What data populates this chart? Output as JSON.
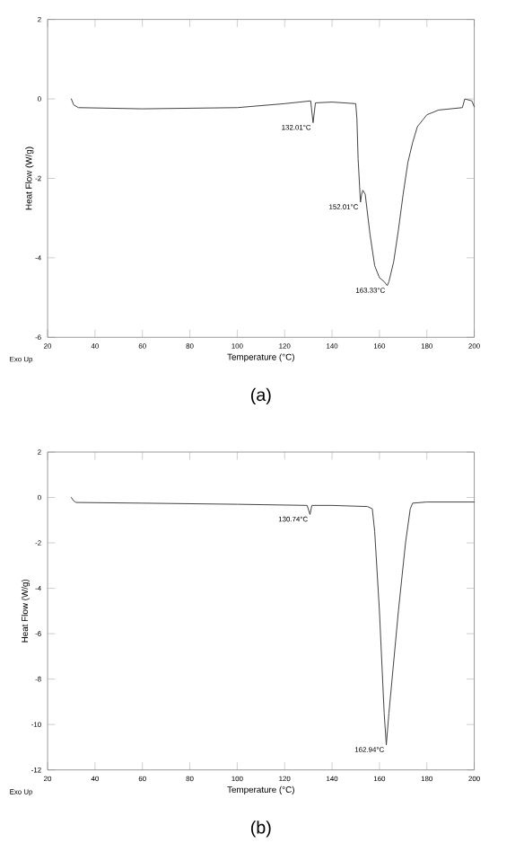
{
  "chart_data": [
    {
      "type": "line",
      "title": "(a)",
      "xlabel": "Temperature (°C)",
      "ylabel": "Heat Flow (W/g)",
      "xlim": [
        20,
        200
      ],
      "ylim": [
        -6,
        2
      ],
      "xticks": [
        20,
        40,
        60,
        80,
        100,
        120,
        140,
        160,
        180,
        200
      ],
      "yticks": [
        -6,
        -4,
        -2,
        0,
        2
      ],
      "series": [
        {
          "color": "#404040",
          "x": [
            30,
            31,
            33,
            60,
            100,
            120,
            131,
            132,
            133,
            140,
            150,
            150.5,
            151,
            152,
            152.5,
            153,
            154,
            156,
            158,
            160,
            162,
            163.3,
            164,
            166,
            168,
            170,
            172,
            174,
            176,
            180,
            185,
            190,
            195,
            196,
            199,
            200
          ],
          "values": [
            0,
            -0.15,
            -0.22,
            -0.25,
            -0.22,
            -0.12,
            -0.05,
            -0.6,
            -0.1,
            -0.08,
            -0.12,
            -0.5,
            -1.5,
            -2.6,
            -2.4,
            -2.3,
            -2.4,
            -3.4,
            -4.2,
            -4.5,
            -4.6,
            -4.7,
            -4.6,
            -4.1,
            -3.3,
            -2.4,
            -1.6,
            -1.1,
            -0.7,
            -0.4,
            -0.28,
            -0.25,
            -0.22,
            0,
            -0.05,
            -0.2
          ]
        }
      ],
      "annotations": [
        "Exo Up",
        {
          "text": "132.01°C",
          "x": 132,
          "y": -0.6
        },
        {
          "text": "152.01°C",
          "x": 152,
          "y": -2.6
        },
        {
          "text": "163.33°C",
          "x": 163.3,
          "y": -4.7
        }
      ]
    },
    {
      "type": "line",
      "title": "(b)",
      "xlabel": "Temperature (°C)",
      "ylabel": "Heat Flow (W/g)",
      "xlim": [
        20,
        200
      ],
      "ylim": [
        -12,
        2
      ],
      "xticks": [
        20,
        40,
        60,
        80,
        100,
        120,
        140,
        160,
        180,
        200
      ],
      "yticks": [
        -12,
        -10,
        -8,
        -6,
        -4,
        -2,
        0,
        2
      ],
      "series": [
        {
          "color": "#404040",
          "x": [
            30,
            31,
            32,
            60,
            100,
            129.5,
            130.7,
            131.5,
            140,
            155,
            157,
            158,
            160,
            162,
            162.9,
            164,
            168,
            171,
            173,
            174,
            180,
            200
          ],
          "values": [
            0,
            -0.15,
            -0.22,
            -0.25,
            -0.3,
            -0.35,
            -0.75,
            -0.35,
            -0.35,
            -0.4,
            -0.5,
            -1.5,
            -5,
            -9.5,
            -10.9,
            -9.5,
            -5,
            -2,
            -0.5,
            -0.25,
            -0.2,
            -0.2
          ]
        }
      ],
      "annotations": [
        "Exo Up",
        {
          "text": "130.74°C",
          "x": 130.7,
          "y": -0.75
        },
        {
          "text": "162.94°C",
          "x": 162.9,
          "y": -10.9
        }
      ]
    }
  ]
}
